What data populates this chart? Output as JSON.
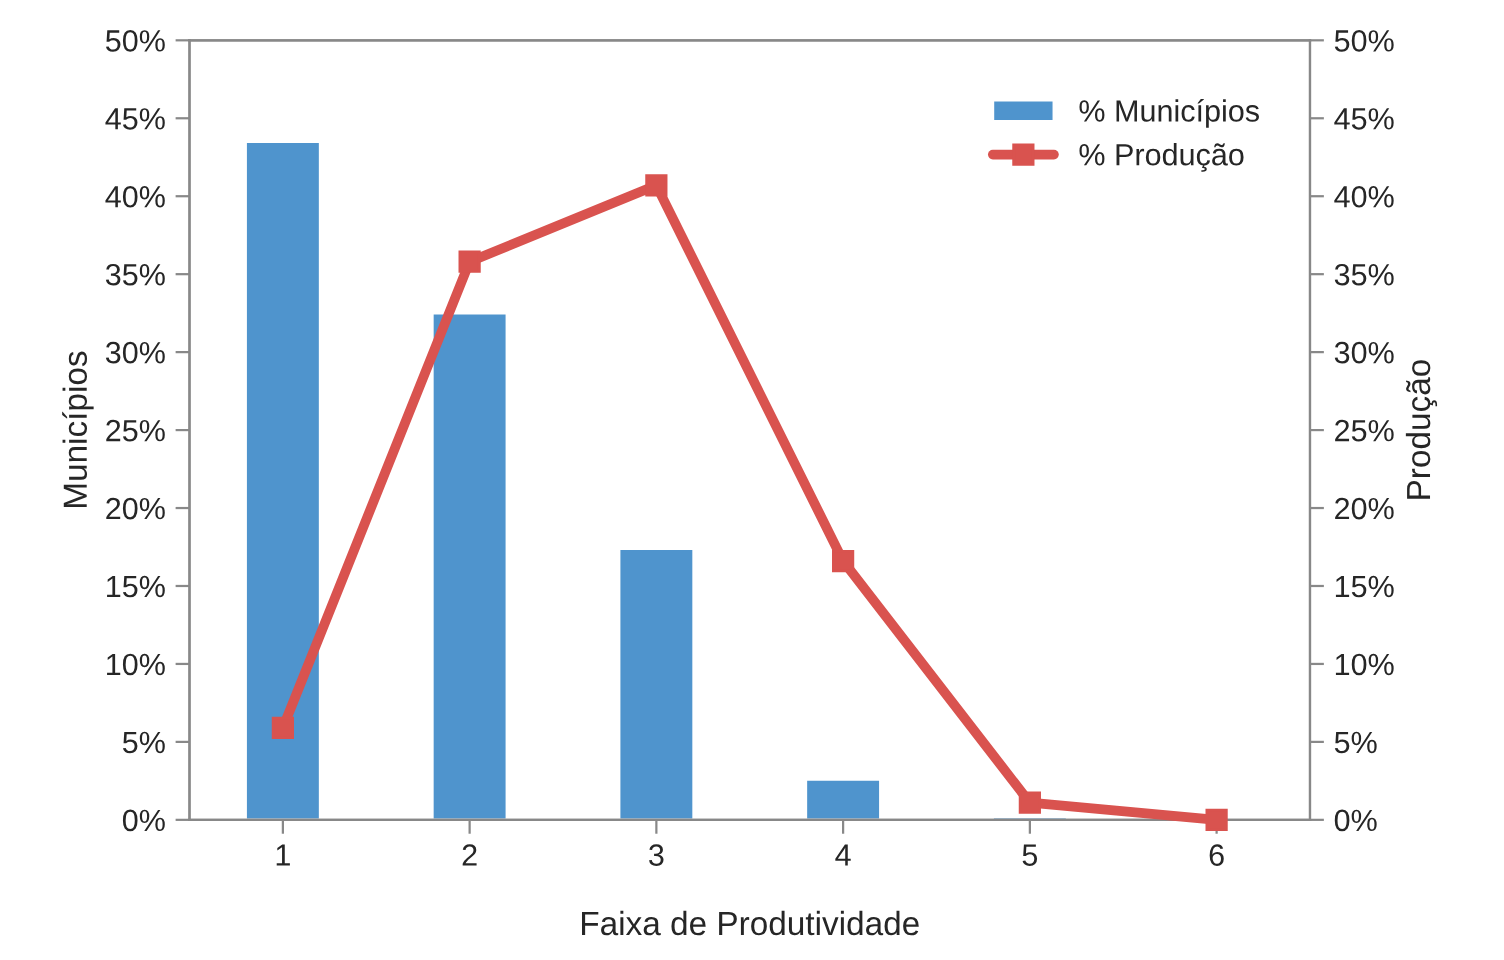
{
  "chart_data": {
    "type": "bar",
    "xlabel": "Faixa de Produtividade",
    "ylabel": "Municípios",
    "y2label": "Produção",
    "categories": [
      "1",
      "2",
      "3",
      "4",
      "5",
      "6"
    ],
    "series": [
      {
        "name": "% Municípios",
        "color": "#4f94cd",
        "values": [
          43.5,
          32.5,
          17.4,
          2.6,
          0.2,
          null
        ]
      },
      {
        "name": "% Produção",
        "type": "line",
        "axis": "y2",
        "color": "#d9534f",
        "marker": "square",
        "line_style": "solid",
        "values": [
          5.9,
          35.8,
          40.7,
          16.6,
          1.1,
          0.0
        ]
      }
    ],
    "ylim": [
      0,
      50
    ],
    "yticks": [
      {
        "value": 0,
        "label": "0%"
      },
      {
        "value": 5,
        "label": "5%"
      },
      {
        "value": 10,
        "label": "10%"
      },
      {
        "value": 15,
        "label": "15%"
      },
      {
        "value": 20,
        "label": "20%"
      },
      {
        "value": 25,
        "label": "25%"
      },
      {
        "value": 30,
        "label": "30%"
      },
      {
        "value": 35,
        "label": "35%"
      },
      {
        "value": 40,
        "label": "40%"
      },
      {
        "value": 45,
        "label": "45%"
      },
      {
        "value": 50,
        "label": "50%"
      }
    ],
    "y2lim": [
      0,
      50
    ],
    "y2ticks": [
      {
        "value": 0,
        "label": "0%"
      },
      {
        "value": 5,
        "label": "5%"
      },
      {
        "value": 10,
        "label": "10%"
      },
      {
        "value": 15,
        "label": "15%"
      },
      {
        "value": 20,
        "label": "20%"
      },
      {
        "value": 25,
        "label": "25%"
      },
      {
        "value": 30,
        "label": "30%"
      },
      {
        "value": 35,
        "label": "35%"
      },
      {
        "value": 40,
        "label": "40%"
      },
      {
        "value": 45,
        "label": "45%"
      },
      {
        "value": 50,
        "label": "50%"
      }
    ],
    "grid": false,
    "legend": "top right"
  }
}
